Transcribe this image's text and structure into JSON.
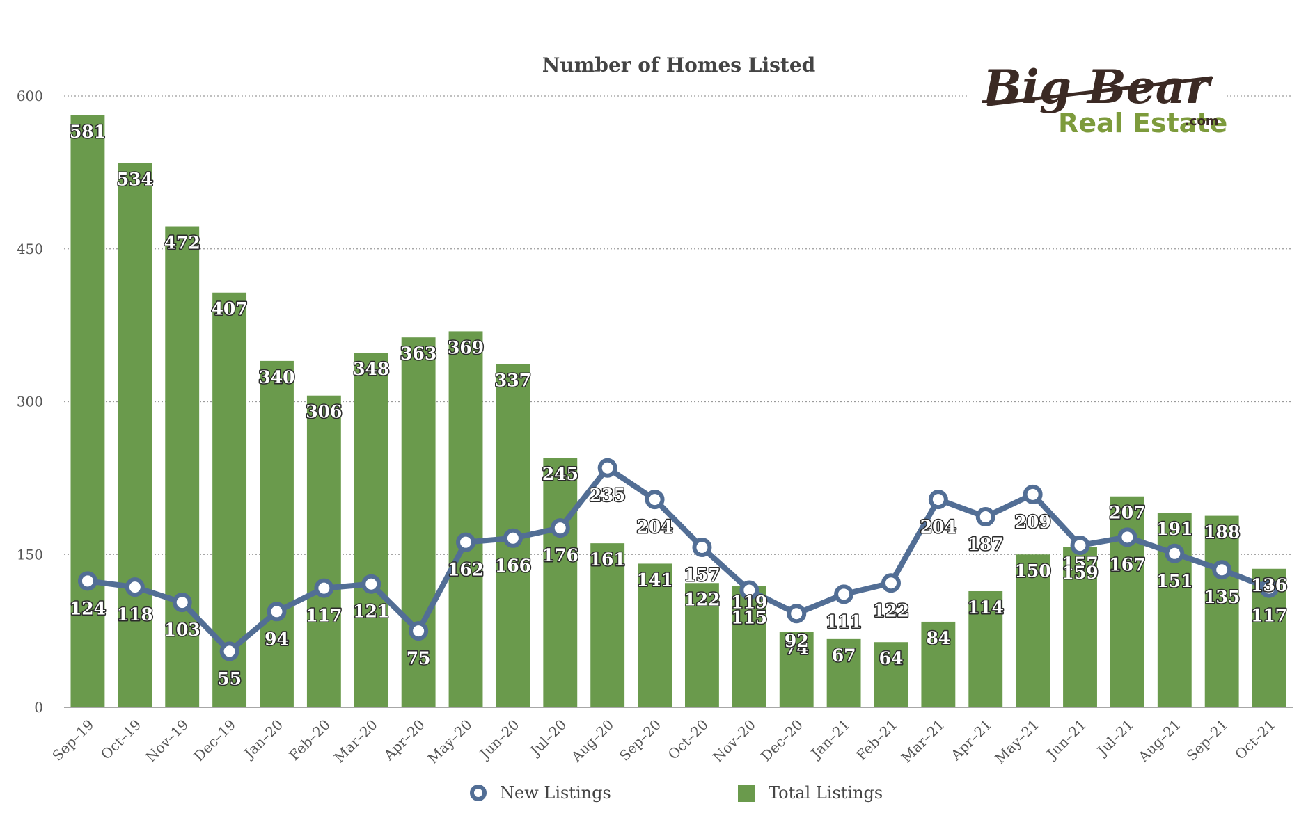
{
  "chart_data": {
    "type": "bar",
    "title": "Number of Homes Listed",
    "xlabel": "",
    "ylabel": "",
    "ylim": [
      0,
      600
    ],
    "yticks": [
      0,
      150,
      300,
      450,
      600
    ],
    "grid": true,
    "legend_position": "bottom",
    "categories": [
      "Sep–19",
      "Oct–19",
      "Nov–19",
      "Dec–19",
      "Jan–20",
      "Feb–20",
      "Mar–20",
      "Apr–20",
      "May–20",
      "Jun–20",
      "Jul–20",
      "Aug–20",
      "Sep–20",
      "Oct–20",
      "Nov–20",
      "Dec–20",
      "Jan–21",
      "Feb–21",
      "Mar–21",
      "Apr–21",
      "May–21",
      "Jun–21",
      "Jul–21",
      "Aug–21",
      "Sep–21",
      "Oct–21"
    ],
    "series": [
      {
        "name": "Total Listings",
        "type": "bar",
        "color": "#6a9a4c",
        "values": [
          581,
          534,
          472,
          407,
          340,
          306,
          348,
          363,
          369,
          337,
          245,
          161,
          141,
          122,
          119,
          74,
          67,
          64,
          84,
          114,
          150,
          157,
          207,
          191,
          188,
          136
        ]
      },
      {
        "name": "New Listings",
        "type": "line",
        "color": "#526e95",
        "values": [
          124,
          118,
          103,
          55,
          94,
          117,
          121,
          75,
          162,
          166,
          176,
          235,
          204,
          157,
          115,
          92,
          111,
          122,
          204,
          187,
          209,
          159,
          167,
          151,
          135,
          117
        ]
      }
    ]
  },
  "logo": {
    "line1": "Big Bear",
    "line2": "Real Estate",
    "suffix": ".com"
  }
}
